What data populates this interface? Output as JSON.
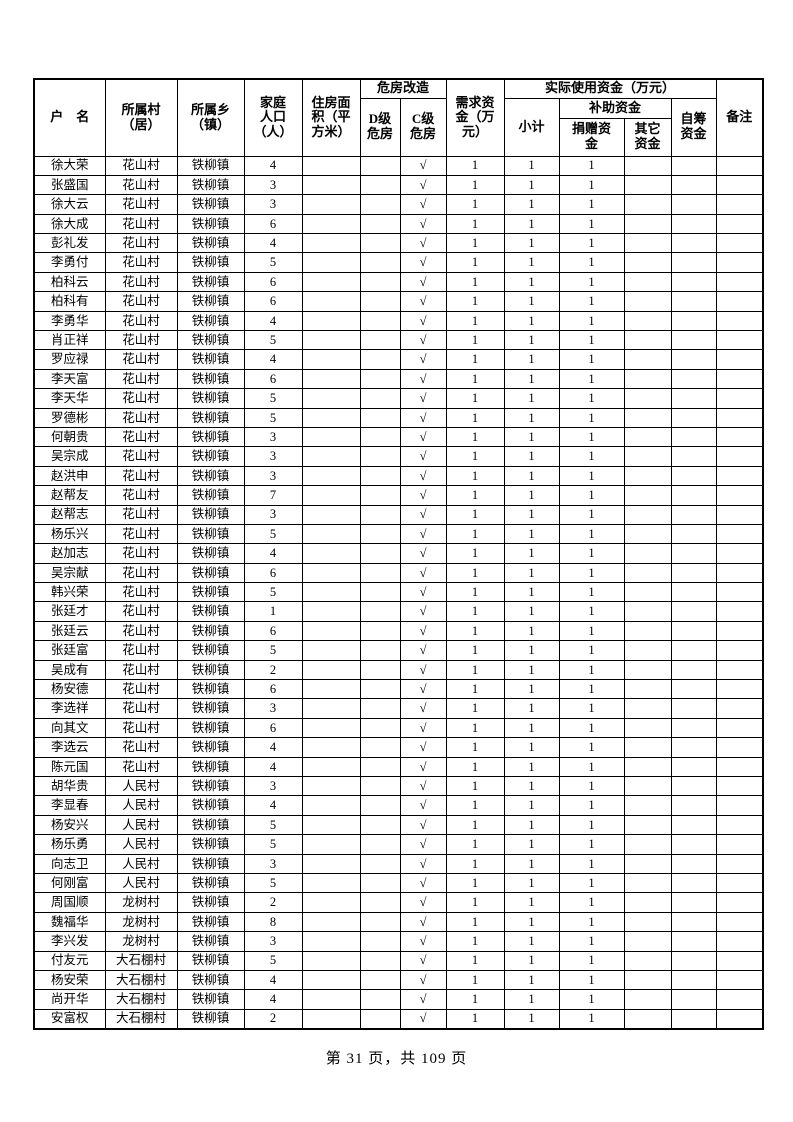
{
  "table": {
    "header": {
      "household_name": "户　名",
      "village": "所属村\n（居）",
      "town": "所属乡\n（镇）",
      "population": "家庭\n人口\n（人）",
      "housing_area": "住房面\n积（平\n方米）",
      "renovation_group": "危房改造",
      "d_level": "D级\n危房",
      "c_level": "C级\n危房",
      "required_fund": "需求资\n金（万\n元）",
      "actual_fund_group": "实际使用资金（万元）",
      "subtotal": "小计",
      "subsidy_group": "补助资金",
      "donation_fund": "捐赠资\n金",
      "other_fund": "其它\n资金",
      "self_raised_fund": "自筹\n资金",
      "remark": "备注"
    },
    "rows": [
      [
        "徐大荣",
        "花山村",
        "铁柳镇",
        "4",
        "",
        "",
        "√",
        "1",
        "1",
        "1",
        "",
        "",
        ""
      ],
      [
        "张盛国",
        "花山村",
        "铁柳镇",
        "3",
        "",
        "",
        "√",
        "1",
        "1",
        "1",
        "",
        "",
        ""
      ],
      [
        "徐大云",
        "花山村",
        "铁柳镇",
        "3",
        "",
        "",
        "√",
        "1",
        "1",
        "1",
        "",
        "",
        ""
      ],
      [
        "徐大成",
        "花山村",
        "铁柳镇",
        "6",
        "",
        "",
        "√",
        "1",
        "1",
        "1",
        "",
        "",
        ""
      ],
      [
        "彭礼发",
        "花山村",
        "铁柳镇",
        "4",
        "",
        "",
        "√",
        "1",
        "1",
        "1",
        "",
        "",
        ""
      ],
      [
        "李勇付",
        "花山村",
        "铁柳镇",
        "5",
        "",
        "",
        "√",
        "1",
        "1",
        "1",
        "",
        "",
        ""
      ],
      [
        "柏科云",
        "花山村",
        "铁柳镇",
        "6",
        "",
        "",
        "√",
        "1",
        "1",
        "1",
        "",
        "",
        ""
      ],
      [
        "柏科有",
        "花山村",
        "铁柳镇",
        "6",
        "",
        "",
        "√",
        "1",
        "1",
        "1",
        "",
        "",
        ""
      ],
      [
        "李勇华",
        "花山村",
        "铁柳镇",
        "4",
        "",
        "",
        "√",
        "1",
        "1",
        "1",
        "",
        "",
        ""
      ],
      [
        "肖正祥",
        "花山村",
        "铁柳镇",
        "5",
        "",
        "",
        "√",
        "1",
        "1",
        "1",
        "",
        "",
        ""
      ],
      [
        "罗应禄",
        "花山村",
        "铁柳镇",
        "4",
        "",
        "",
        "√",
        "1",
        "1",
        "1",
        "",
        "",
        ""
      ],
      [
        "李天富",
        "花山村",
        "铁柳镇",
        "6",
        "",
        "",
        "√",
        "1",
        "1",
        "1",
        "",
        "",
        ""
      ],
      [
        "李天华",
        "花山村",
        "铁柳镇",
        "5",
        "",
        "",
        "√",
        "1",
        "1",
        "1",
        "",
        "",
        ""
      ],
      [
        "罗德彬",
        "花山村",
        "铁柳镇",
        "5",
        "",
        "",
        "√",
        "1",
        "1",
        "1",
        "",
        "",
        ""
      ],
      [
        "何朝贵",
        "花山村",
        "铁柳镇",
        "3",
        "",
        "",
        "√",
        "1",
        "1",
        "1",
        "",
        "",
        ""
      ],
      [
        "吴宗成",
        "花山村",
        "铁柳镇",
        "3",
        "",
        "",
        "√",
        "1",
        "1",
        "1",
        "",
        "",
        ""
      ],
      [
        "赵洪申",
        "花山村",
        "铁柳镇",
        "3",
        "",
        "",
        "√",
        "1",
        "1",
        "1",
        "",
        "",
        ""
      ],
      [
        "赵帮友",
        "花山村",
        "铁柳镇",
        "7",
        "",
        "",
        "√",
        "1",
        "1",
        "1",
        "",
        "",
        ""
      ],
      [
        "赵帮志",
        "花山村",
        "铁柳镇",
        "3",
        "",
        "",
        "√",
        "1",
        "1",
        "1",
        "",
        "",
        ""
      ],
      [
        "杨乐兴",
        "花山村",
        "铁柳镇",
        "5",
        "",
        "",
        "√",
        "1",
        "1",
        "1",
        "",
        "",
        ""
      ],
      [
        "赵加志",
        "花山村",
        "铁柳镇",
        "4",
        "",
        "",
        "√",
        "1",
        "1",
        "1",
        "",
        "",
        ""
      ],
      [
        "吴宗献",
        "花山村",
        "铁柳镇",
        "6",
        "",
        "",
        "√",
        "1",
        "1",
        "1",
        "",
        "",
        ""
      ],
      [
        "韩兴荣",
        "花山村",
        "铁柳镇",
        "5",
        "",
        "",
        "√",
        "1",
        "1",
        "1",
        "",
        "",
        ""
      ],
      [
        "张廷才",
        "花山村",
        "铁柳镇",
        "1",
        "",
        "",
        "√",
        "1",
        "1",
        "1",
        "",
        "",
        ""
      ],
      [
        "张廷云",
        "花山村",
        "铁柳镇",
        "6",
        "",
        "",
        "√",
        "1",
        "1",
        "1",
        "",
        "",
        ""
      ],
      [
        "张廷富",
        "花山村",
        "铁柳镇",
        "5",
        "",
        "",
        "√",
        "1",
        "1",
        "1",
        "",
        "",
        ""
      ],
      [
        "吴成有",
        "花山村",
        "铁柳镇",
        "2",
        "",
        "",
        "√",
        "1",
        "1",
        "1",
        "",
        "",
        ""
      ],
      [
        "杨安德",
        "花山村",
        "铁柳镇",
        "6",
        "",
        "",
        "√",
        "1",
        "1",
        "1",
        "",
        "",
        ""
      ],
      [
        "李选祥",
        "花山村",
        "铁柳镇",
        "3",
        "",
        "",
        "√",
        "1",
        "1",
        "1",
        "",
        "",
        ""
      ],
      [
        "向其文",
        "花山村",
        "铁柳镇",
        "6",
        "",
        "",
        "√",
        "1",
        "1",
        "1",
        "",
        "",
        ""
      ],
      [
        "李选云",
        "花山村",
        "铁柳镇",
        "4",
        "",
        "",
        "√",
        "1",
        "1",
        "1",
        "",
        "",
        ""
      ],
      [
        "陈元国",
        "花山村",
        "铁柳镇",
        "4",
        "",
        "",
        "√",
        "1",
        "1",
        "1",
        "",
        "",
        ""
      ],
      [
        "胡华贵",
        "人民村",
        "铁柳镇",
        "3",
        "",
        "",
        "√",
        "1",
        "1",
        "1",
        "",
        "",
        ""
      ],
      [
        "李显春",
        "人民村",
        "铁柳镇",
        "4",
        "",
        "",
        "√",
        "1",
        "1",
        "1",
        "",
        "",
        ""
      ],
      [
        "杨安兴",
        "人民村",
        "铁柳镇",
        "5",
        "",
        "",
        "√",
        "1",
        "1",
        "1",
        "",
        "",
        ""
      ],
      [
        "杨乐勇",
        "人民村",
        "铁柳镇",
        "5",
        "",
        "",
        "√",
        "1",
        "1",
        "1",
        "",
        "",
        ""
      ],
      [
        "向志卫",
        "人民村",
        "铁柳镇",
        "3",
        "",
        "",
        "√",
        "1",
        "1",
        "1",
        "",
        "",
        ""
      ],
      [
        "何刚富",
        "人民村",
        "铁柳镇",
        "5",
        "",
        "",
        "√",
        "1",
        "1",
        "1",
        "",
        "",
        ""
      ],
      [
        "周国顺",
        "龙树村",
        "铁柳镇",
        "2",
        "",
        "",
        "√",
        "1",
        "1",
        "1",
        "",
        "",
        ""
      ],
      [
        "魏福华",
        "龙树村",
        "铁柳镇",
        "8",
        "",
        "",
        "√",
        "1",
        "1",
        "1",
        "",
        "",
        ""
      ],
      [
        "李兴发",
        "龙树村",
        "铁柳镇",
        "3",
        "",
        "",
        "√",
        "1",
        "1",
        "1",
        "",
        "",
        ""
      ],
      [
        "付友元",
        "大石棚村",
        "铁柳镇",
        "5",
        "",
        "",
        "√",
        "1",
        "1",
        "1",
        "",
        "",
        ""
      ],
      [
        "杨安荣",
        "大石棚村",
        "铁柳镇",
        "4",
        "",
        "",
        "√",
        "1",
        "1",
        "1",
        "",
        "",
        ""
      ],
      [
        "尚开华",
        "大石棚村",
        "铁柳镇",
        "4",
        "",
        "",
        "√",
        "1",
        "1",
        "1",
        "",
        "",
        ""
      ],
      [
        "安富权",
        "大石棚村",
        "铁柳镇",
        "2",
        "",
        "",
        "√",
        "1",
        "1",
        "1",
        "",
        "",
        ""
      ]
    ]
  },
  "footer": {
    "page_indicator": "第 31 页，共 109 页"
  }
}
